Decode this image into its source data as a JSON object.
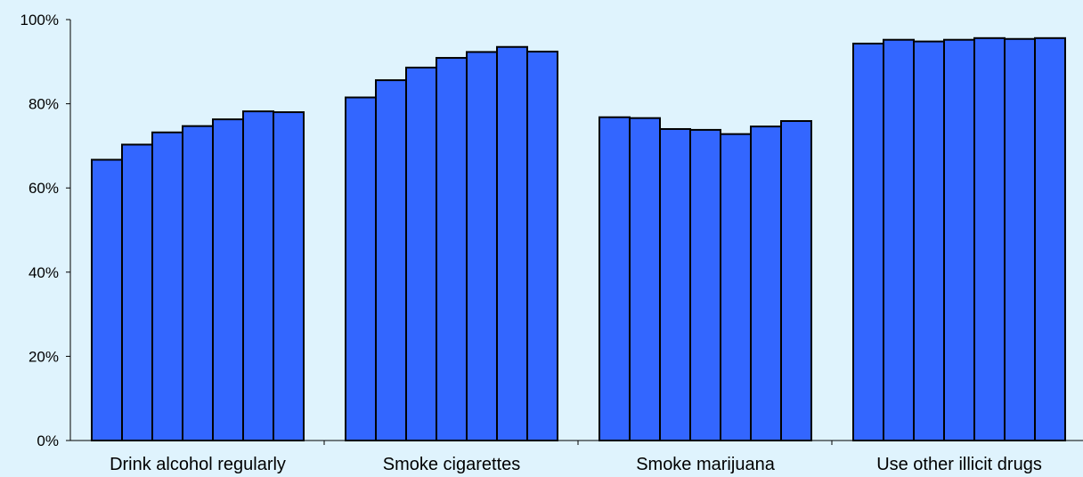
{
  "chart_data": {
    "type": "bar",
    "categories": [
      "Drink alcohol regularly",
      "Smoke cigarettes",
      "Smoke marijuana",
      "Use other illicit drugs"
    ],
    "series_count": 7,
    "values": [
      [
        66.7,
        70.3,
        73.2,
        74.7,
        76.3,
        78.2,
        78.0
      ],
      [
        81.5,
        85.6,
        88.6,
        90.9,
        92.3,
        93.5,
        92.4
      ],
      [
        76.8,
        76.6,
        74.0,
        73.8,
        72.8,
        74.6,
        75.9
      ],
      [
        94.3,
        95.2,
        94.8,
        95.2,
        95.6,
        95.4,
        95.6
      ]
    ],
    "ylim": [
      0,
      100
    ],
    "y_ticks": [
      "0%",
      "20%",
      "40%",
      "60%",
      "80%",
      "100%"
    ],
    "y_tick_values": [
      0,
      20,
      40,
      60,
      80,
      100
    ],
    "title": "",
    "xlabel": "",
    "ylabel": "",
    "grid": false,
    "legend": "none",
    "colors": {
      "background": "#dff3fd",
      "bar_fill": "#3366ff",
      "bar_stroke": "#000000",
      "axis": "#000000"
    }
  }
}
